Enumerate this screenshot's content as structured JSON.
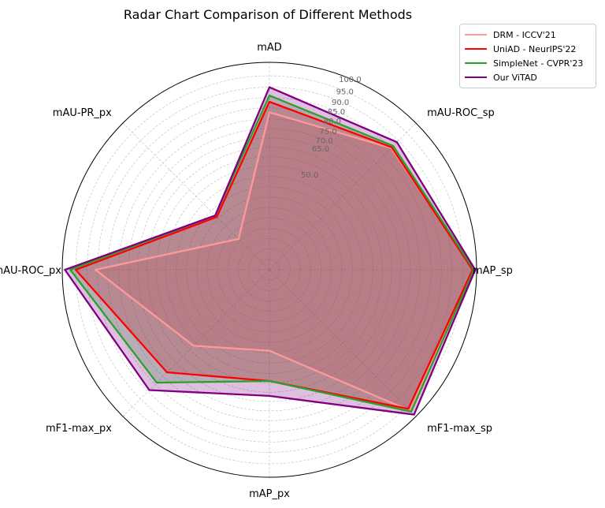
{
  "chart_data": {
    "type": "radar",
    "title": "Radar Chart Comparison of Different Methods",
    "axes": [
      "mAD",
      "mAU-ROC_sp",
      "mAP_sp",
      "mF1-max_sp",
      "mAP_px",
      "mF1-max_px",
      "mAU-ROC_px",
      "mAU-PR_px"
    ],
    "radial_ticks": [
      50.0,
      65.0,
      70.0,
      75.0,
      80.0,
      85.0,
      90.0,
      95.0,
      100.0
    ],
    "radial_tick_labels": [
      "50.0",
      "65.0",
      "70.0",
      "75.0",
      "80.0",
      "85.0",
      "90.0",
      "95.0",
      "100.0"
    ],
    "scale": "nonlinear",
    "rlim": [
      0,
      100
    ],
    "grid": true,
    "legend_position": "top-right",
    "series": [
      {
        "name": "DRM - ICCV'21",
        "color": "#ff9999",
        "values": [
          78.0,
          85.0,
          99.0,
          97.0,
          39.0,
          52.0,
          86.0,
          21.0
        ]
      },
      {
        "name": "UniAD - NeurIPS'22",
        "color": "#ff0000",
        "values": [
          83.0,
          85.5,
          98.5,
          96.0,
          54.0,
          72.0,
          95.0,
          36.0
        ]
      },
      {
        "name": "SimpleNet - CVPR'23",
        "color": "#2ca02c",
        "values": [
          86.0,
          86.5,
          99.0,
          97.5,
          54.0,
          79.0,
          97.0,
          37.0
        ]
      },
      {
        "name": "Our ViTAD",
        "color": "#800080",
        "values": [
          90.0,
          89.0,
          99.5,
          99.0,
          62.0,
          84.0,
          99.0,
          37.0
        ]
      }
    ]
  }
}
